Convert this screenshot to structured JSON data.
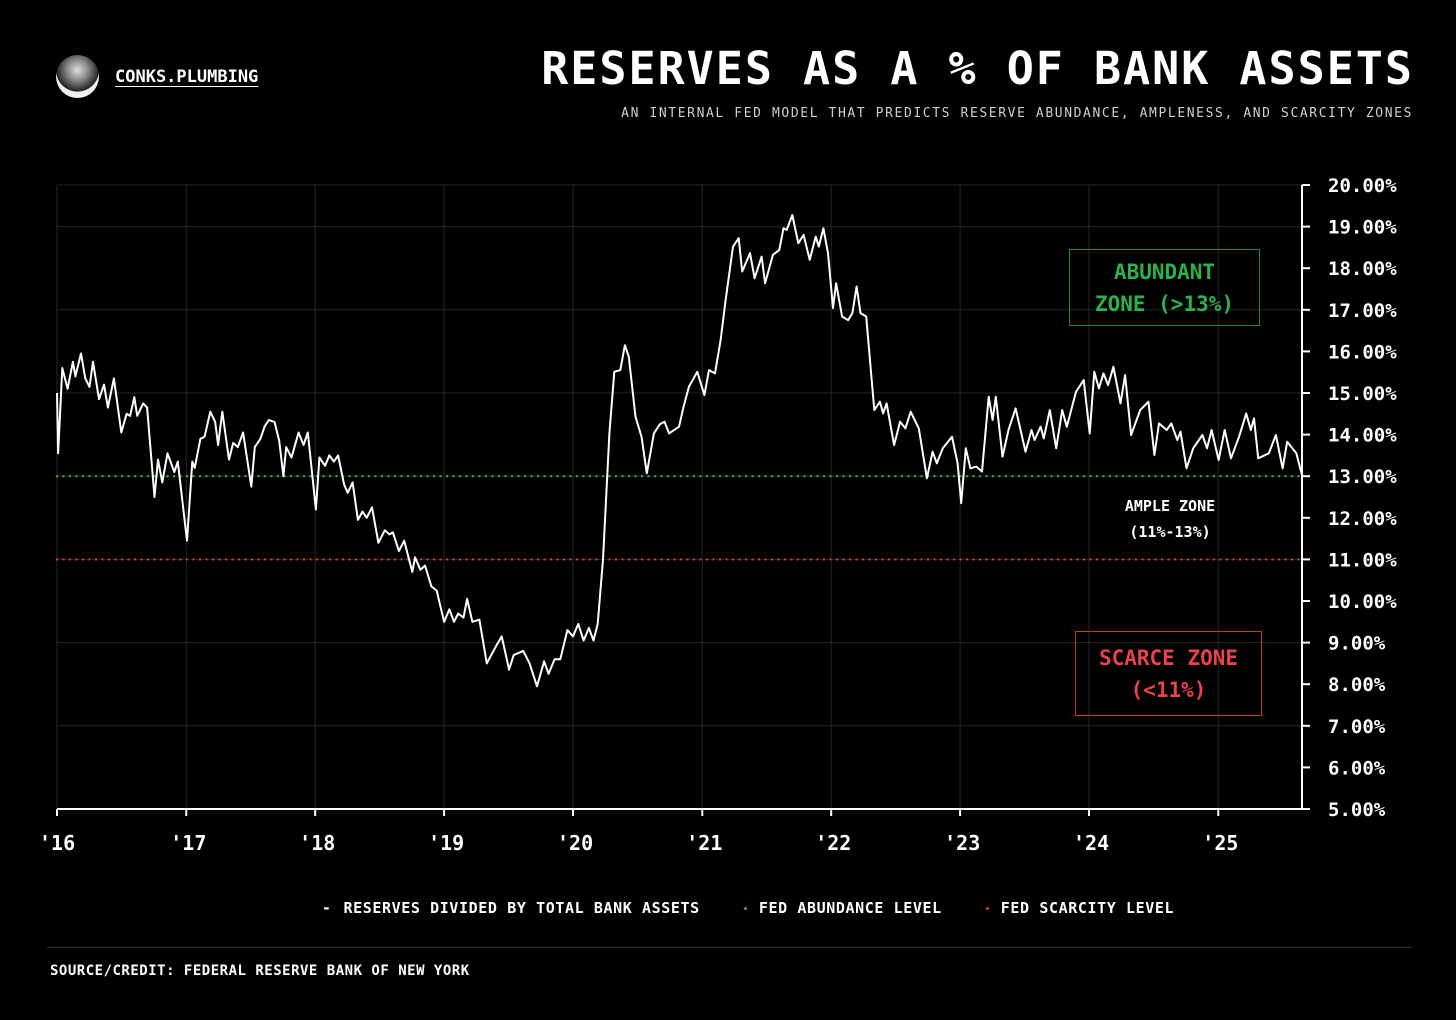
{
  "brand": {
    "name": "CONKS.PLUMBING",
    "avatar_icon": "ninja-avatar-icon"
  },
  "header": {
    "title": "RESERVES AS A % OF BANK ASSETS",
    "subtitle": "AN INTERNAL FED MODEL THAT PREDICTS RESERVE ABUNDANCE, AMPLENESS, AND SCARCITY ZONES"
  },
  "zones": {
    "abundant": {
      "line1": "ABUNDANT",
      "line2": "ZONE (>13%)",
      "color": "#2bb24c"
    },
    "ample": {
      "line1": "AMPLE ZONE",
      "line2": "(11%-13%)"
    },
    "scarce": {
      "line1": "SCARCE ZONE",
      "line2": "(<11%)",
      "color": "#e8434b"
    }
  },
  "legend": {
    "series_symbol": "-",
    "series": "RESERVES DIVIDED BY TOTAL BANK ASSETS",
    "abundance": "FED ABUNDANCE LEVEL",
    "scarcity": "FED SCARCITY LEVEL"
  },
  "footer": {
    "source": "SOURCE/CREDIT: FEDERAL RESERVE BANK OF NEW YORK"
  },
  "chart_data": {
    "type": "line",
    "title": "RESERVES AS A % OF BANK ASSETS",
    "xlabel": "",
    "ylabel": "",
    "xlim": [
      "2016-01-01",
      "2025-08-26"
    ],
    "ylim": [
      5,
      20
    ],
    "y_axis_position": "right",
    "grid": true,
    "legend_position": "bottom",
    "x_ticks": [
      {
        "date": "2016-01-01",
        "label": "'16"
      },
      {
        "date": "2017-01-01",
        "label": "'17"
      },
      {
        "date": "2018-01-01",
        "label": "'18"
      },
      {
        "date": "2019-01-01",
        "label": "'19"
      },
      {
        "date": "2020-01-01",
        "label": "'20"
      },
      {
        "date": "2021-01-01",
        "label": "'21"
      },
      {
        "date": "2022-01-01",
        "label": "'22"
      },
      {
        "date": "2023-01-01",
        "label": "'23"
      },
      {
        "date": "2024-01-01",
        "label": "'24"
      },
      {
        "date": "2025-01-01",
        "label": "'25"
      }
    ],
    "y_ticks": [
      {
        "value": 20,
        "label": "20.00%"
      },
      {
        "value": 19,
        "label": "19.00%"
      },
      {
        "value": 18,
        "label": "18.00%"
      },
      {
        "value": 17,
        "label": "17.00%"
      },
      {
        "value": 16,
        "label": "16.00%"
      },
      {
        "value": 15,
        "label": "15.00%"
      },
      {
        "value": 14,
        "label": "14.00%"
      },
      {
        "value": 13,
        "label": "13.00%"
      },
      {
        "value": 12,
        "label": "12.00%"
      },
      {
        "value": 11,
        "label": "11.00%"
      },
      {
        "value": 10,
        "label": "10.00%"
      },
      {
        "value": 9,
        "label": "9.00%"
      },
      {
        "value": 8,
        "label": "8.00%"
      },
      {
        "value": 7,
        "label": "7.00%"
      },
      {
        "value": 6,
        "label": "6.00%"
      },
      {
        "value": 5,
        "label": "5.00%"
      }
    ],
    "reference_lines": [
      {
        "name": "FED ABUNDANCE LEVEL",
        "value": 13,
        "color": "#2bb24c",
        "style": "dotted"
      },
      {
        "name": "FED SCARCITY LEVEL",
        "value": 11,
        "color": "#e0343c",
        "style": "dotted"
      }
    ],
    "series": [
      {
        "name": "RESERVES DIVIDED BY TOTAL BANK ASSETS",
        "color": "#ffffff",
        "points": [
          [
            "2016-01-01",
            15.0
          ],
          [
            "2016-01-04",
            13.55
          ],
          [
            "2016-01-16",
            15.6
          ],
          [
            "2016-01-31",
            15.1
          ],
          [
            "2016-02-15",
            15.75
          ],
          [
            "2016-02-22",
            15.4
          ],
          [
            "2016-03-09",
            15.95
          ],
          [
            "2016-03-21",
            15.35
          ],
          [
            "2016-04-02",
            15.15
          ],
          [
            "2016-04-12",
            15.75
          ],
          [
            "2016-04-29",
            14.85
          ],
          [
            "2016-05-13",
            15.2
          ],
          [
            "2016-05-24",
            14.65
          ],
          [
            "2016-06-10",
            15.35
          ],
          [
            "2016-07-01",
            14.05
          ],
          [
            "2016-07-16",
            14.5
          ],
          [
            "2016-07-26",
            14.45
          ],
          [
            "2016-08-07",
            14.9
          ],
          [
            "2016-08-15",
            14.45
          ],
          [
            "2016-09-01",
            14.75
          ],
          [
            "2016-09-12",
            14.65
          ],
          [
            "2016-10-03",
            12.5
          ],
          [
            "2016-10-13",
            13.4
          ],
          [
            "2016-10-25",
            12.85
          ],
          [
            "2016-11-09",
            13.55
          ],
          [
            "2016-11-28",
            13.1
          ],
          [
            "2016-12-08",
            13.35
          ],
          [
            "2017-01-03",
            11.45
          ],
          [
            "2017-01-18",
            13.35
          ],
          [
            "2017-01-25",
            13.2
          ],
          [
            "2017-02-10",
            13.9
          ],
          [
            "2017-02-22",
            13.95
          ],
          [
            "2017-03-10",
            14.55
          ],
          [
            "2017-03-24",
            14.3
          ],
          [
            "2017-04-01",
            13.75
          ],
          [
            "2017-04-13",
            14.55
          ],
          [
            "2017-05-02",
            13.4
          ],
          [
            "2017-05-14",
            13.8
          ],
          [
            "2017-05-27",
            13.7
          ],
          [
            "2017-06-11",
            14.05
          ],
          [
            "2017-07-04",
            12.75
          ],
          [
            "2017-07-14",
            13.7
          ],
          [
            "2017-07-30",
            13.9
          ],
          [
            "2017-08-11",
            14.2
          ],
          [
            "2017-08-23",
            14.35
          ],
          [
            "2017-09-08",
            14.3
          ],
          [
            "2017-09-21",
            13.85
          ],
          [
            "2017-10-03",
            13.0
          ],
          [
            "2017-10-11",
            13.7
          ],
          [
            "2017-10-26",
            13.45
          ],
          [
            "2017-11-15",
            14.05
          ],
          [
            "2017-11-29",
            13.75
          ],
          [
            "2017-12-11",
            14.05
          ],
          [
            "2018-01-03",
            12.2
          ],
          [
            "2018-01-13",
            13.45
          ],
          [
            "2018-01-29",
            13.25
          ],
          [
            "2018-02-10",
            13.5
          ],
          [
            "2018-02-23",
            13.35
          ],
          [
            "2018-03-07",
            13.5
          ],
          [
            "2018-03-24",
            12.8
          ],
          [
            "2018-04-03",
            12.6
          ],
          [
            "2018-04-17",
            12.85
          ],
          [
            "2018-05-02",
            11.95
          ],
          [
            "2018-05-15",
            12.15
          ],
          [
            "2018-05-27",
            12.0
          ],
          [
            "2018-06-11",
            12.25
          ],
          [
            "2018-06-29",
            11.4
          ],
          [
            "2018-07-17",
            11.7
          ],
          [
            "2018-07-30",
            11.6
          ],
          [
            "2018-08-09",
            11.65
          ],
          [
            "2018-08-26",
            11.2
          ],
          [
            "2018-09-10",
            11.45
          ],
          [
            "2018-10-03",
            10.7
          ],
          [
            "2018-10-11",
            11.05
          ],
          [
            "2018-10-26",
            10.75
          ],
          [
            "2018-11-08",
            10.85
          ],
          [
            "2018-11-26",
            10.35
          ],
          [
            "2018-12-11",
            10.25
          ],
          [
            "2019-01-01",
            9.5
          ],
          [
            "2019-01-16",
            9.8
          ],
          [
            "2019-01-29",
            9.5
          ],
          [
            "2019-02-10",
            9.7
          ],
          [
            "2019-02-25",
            9.6
          ],
          [
            "2019-03-07",
            10.05
          ],
          [
            "2019-03-22",
            9.5
          ],
          [
            "2019-04-11",
            9.55
          ],
          [
            "2019-05-02",
            8.5
          ],
          [
            "2019-05-27",
            8.9
          ],
          [
            "2019-06-13",
            9.15
          ],
          [
            "2019-07-04",
            8.35
          ],
          [
            "2019-07-17",
            8.7
          ],
          [
            "2019-08-13",
            8.8
          ],
          [
            "2019-08-31",
            8.5
          ],
          [
            "2019-09-21",
            7.95
          ],
          [
            "2019-10-11",
            8.55
          ],
          [
            "2019-10-24",
            8.25
          ],
          [
            "2019-11-10",
            8.6
          ],
          [
            "2019-11-26",
            8.6
          ],
          [
            "2019-12-16",
            9.3
          ],
          [
            "2020-01-01",
            9.15
          ],
          [
            "2020-01-16",
            9.45
          ],
          [
            "2020-01-31",
            9.05
          ],
          [
            "2020-02-15",
            9.35
          ],
          [
            "2020-02-28",
            9.05
          ],
          [
            "2020-03-11",
            9.45
          ],
          [
            "2020-03-26",
            11.0
          ],
          [
            "2020-04-13",
            14.03
          ],
          [
            "2020-04-27",
            15.51
          ],
          [
            "2020-05-14",
            15.55
          ],
          [
            "2020-05-27",
            16.15
          ],
          [
            "2020-06-07",
            15.87
          ],
          [
            "2020-06-26",
            14.43
          ],
          [
            "2020-07-13",
            13.95
          ],
          [
            "2020-07-28",
            13.07
          ],
          [
            "2020-08-17",
            14.03
          ],
          [
            "2020-09-03",
            14.25
          ],
          [
            "2020-09-16",
            14.31
          ],
          [
            "2020-09-29",
            14.03
          ],
          [
            "2020-10-27",
            14.19
          ],
          [
            "2020-11-09",
            14.67
          ],
          [
            "2020-11-24",
            15.15
          ],
          [
            "2020-12-18",
            15.51
          ],
          [
            "2021-01-07",
            14.95
          ],
          [
            "2021-01-20",
            15.55
          ],
          [
            "2021-02-06",
            15.47
          ],
          [
            "2021-02-22",
            16.27
          ],
          [
            "2021-03-08",
            17.23
          ],
          [
            "2021-03-29",
            18.52
          ],
          [
            "2021-04-14",
            18.72
          ],
          [
            "2021-04-24",
            17.92
          ],
          [
            "2021-05-16",
            18.36
          ],
          [
            "2021-05-29",
            17.76
          ],
          [
            "2021-06-18",
            18.28
          ],
          [
            "2021-06-28",
            17.64
          ],
          [
            "2021-07-20",
            18.32
          ],
          [
            "2021-08-07",
            18.44
          ],
          [
            "2021-08-19",
            18.96
          ],
          [
            "2021-08-28",
            18.92
          ],
          [
            "2021-09-13",
            19.28
          ],
          [
            "2021-09-30",
            18.6
          ],
          [
            "2021-10-15",
            18.8
          ],
          [
            "2021-11-01",
            18.2
          ],
          [
            "2021-11-18",
            18.76
          ],
          [
            "2021-11-27",
            18.52
          ],
          [
            "2021-12-10",
            18.96
          ],
          [
            "2021-12-23",
            18.36
          ],
          [
            "2022-01-06",
            17.04
          ],
          [
            "2022-01-15",
            17.64
          ],
          [
            "2022-02-01",
            16.84
          ],
          [
            "2022-02-18",
            16.75
          ],
          [
            "2022-03-02",
            16.92
          ],
          [
            "2022-03-14",
            17.56
          ],
          [
            "2022-03-25",
            16.92
          ],
          [
            "2022-04-10",
            16.84
          ],
          [
            "2022-05-03",
            14.59
          ],
          [
            "2022-05-19",
            14.79
          ],
          [
            "2022-05-28",
            14.51
          ],
          [
            "2022-06-07",
            14.75
          ],
          [
            "2022-06-28",
            13.75
          ],
          [
            "2022-07-15",
            14.31
          ],
          [
            "2022-07-30",
            14.15
          ],
          [
            "2022-08-14",
            14.55
          ],
          [
            "2022-09-06",
            14.15
          ],
          [
            "2022-09-29",
            12.95
          ],
          [
            "2022-10-15",
            13.59
          ],
          [
            "2022-10-27",
            13.31
          ],
          [
            "2022-11-13",
            13.67
          ],
          [
            "2022-12-09",
            13.95
          ],
          [
            "2022-12-25",
            13.31
          ],
          [
            "2023-01-04",
            12.35
          ],
          [
            "2023-01-17",
            13.67
          ],
          [
            "2023-01-30",
            13.19
          ],
          [
            "2023-02-16",
            13.23
          ],
          [
            "2023-03-04",
            13.11
          ],
          [
            "2023-03-23",
            14.91
          ],
          [
            "2023-04-03",
            14.35
          ],
          [
            "2023-04-12",
            14.91
          ],
          [
            "2023-05-01",
            13.47
          ],
          [
            "2023-05-18",
            14.11
          ],
          [
            "2023-06-07",
            14.63
          ],
          [
            "2023-07-05",
            13.59
          ],
          [
            "2023-07-22",
            14.11
          ],
          [
            "2023-07-31",
            13.87
          ],
          [
            "2023-08-17",
            14.19
          ],
          [
            "2023-08-26",
            13.91
          ],
          [
            "2023-09-12",
            14.59
          ],
          [
            "2023-09-30",
            13.67
          ],
          [
            "2023-10-17",
            14.59
          ],
          [
            "2023-10-30",
            14.19
          ],
          [
            "2023-11-25",
            15.03
          ],
          [
            "2023-12-17",
            15.31
          ],
          [
            "2024-01-03",
            14.03
          ],
          [
            "2024-01-16",
            15.51
          ],
          [
            "2024-01-29",
            15.11
          ],
          [
            "2024-02-11",
            15.47
          ],
          [
            "2024-02-24",
            15.19
          ],
          [
            "2024-03-10",
            15.63
          ],
          [
            "2024-03-30",
            14.75
          ],
          [
            "2024-04-12",
            15.43
          ],
          [
            "2024-04-29",
            13.99
          ],
          [
            "2024-05-25",
            14.59
          ],
          [
            "2024-06-17",
            14.79
          ],
          [
            "2024-07-04",
            13.51
          ],
          [
            "2024-07-17",
            14.27
          ],
          [
            "2024-08-08",
            14.11
          ],
          [
            "2024-08-21",
            14.27
          ],
          [
            "2024-09-07",
            13.87
          ],
          [
            "2024-09-16",
            14.07
          ],
          [
            "2024-10-03",
            13.19
          ],
          [
            "2024-10-22",
            13.67
          ],
          [
            "2024-11-17",
            13.99
          ],
          [
            "2024-11-30",
            13.67
          ],
          [
            "2024-12-13",
            14.11
          ],
          [
            "2025-01-02",
            13.39
          ],
          [
            "2025-01-19",
            14.11
          ],
          [
            "2025-02-06",
            13.43
          ],
          [
            "2025-03-01",
            13.95
          ],
          [
            "2025-03-21",
            14.51
          ],
          [
            "2025-04-03",
            14.11
          ],
          [
            "2025-04-12",
            14.39
          ],
          [
            "2025-04-24",
            13.43
          ],
          [
            "2025-05-24",
            13.55
          ],
          [
            "2025-06-13",
            13.99
          ],
          [
            "2025-07-02",
            13.19
          ],
          [
            "2025-07-15",
            13.83
          ],
          [
            "2025-08-10",
            13.55
          ],
          [
            "2025-08-26",
            13.03
          ]
        ]
      }
    ]
  }
}
